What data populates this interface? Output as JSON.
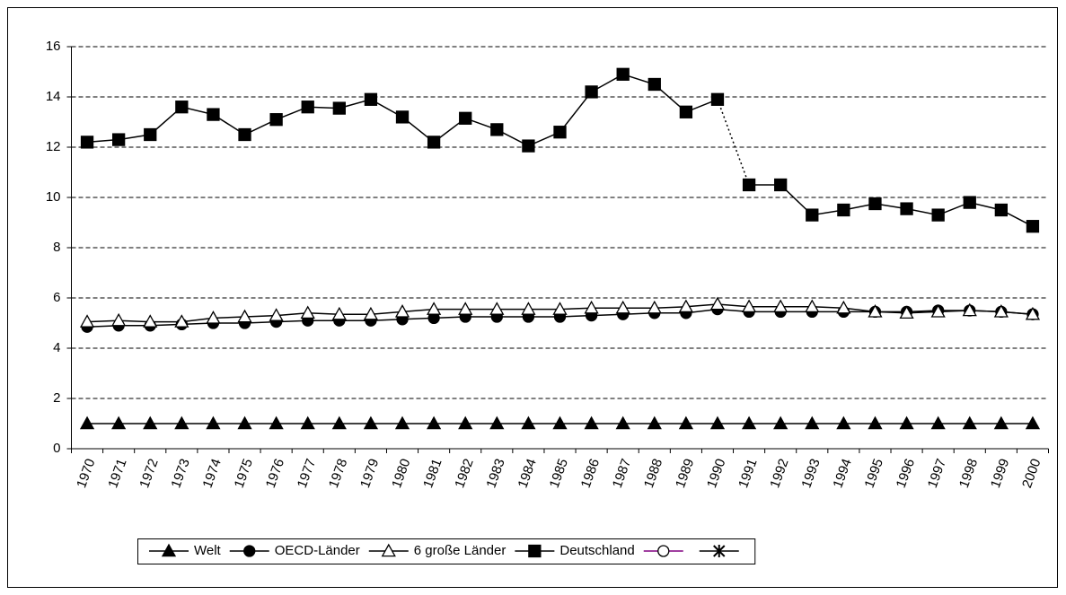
{
  "chart_data": {
    "type": "line",
    "categories": [
      "1970",
      "1971",
      "1972",
      "1973",
      "1974",
      "1975",
      "1976",
      "1977",
      "1978",
      "1979",
      "1980",
      "1981",
      "1982",
      "1983",
      "1984",
      "1985",
      "1986",
      "1987",
      "1988",
      "1989",
      "1990",
      "1991",
      "1992",
      "1993",
      "1994",
      "1995",
      "1996",
      "1997",
      "1998",
      "1999",
      "2000"
    ],
    "series": [
      {
        "name": "Welt",
        "color": "#000000",
        "marker": "triangle-filled",
        "values": [
          1,
          1,
          1,
          1,
          1,
          1,
          1,
          1,
          1,
          1,
          1,
          1,
          1,
          1,
          1,
          1,
          1,
          1,
          1,
          1,
          1,
          1,
          1,
          1,
          1,
          1,
          1,
          1,
          1,
          1,
          1
        ]
      },
      {
        "name": "OECD-Länder",
        "color": "#000000",
        "marker": "circle-filled",
        "values": [
          4.85,
          4.9,
          4.9,
          4.95,
          5.0,
          5.0,
          5.05,
          5.1,
          5.1,
          5.1,
          5.15,
          5.2,
          5.25,
          5.25,
          5.25,
          5.25,
          5.3,
          5.35,
          5.4,
          5.4,
          5.55,
          5.45,
          5.45,
          5.45,
          5.45,
          5.45,
          5.45,
          5.5,
          5.5,
          5.45,
          5.35
        ]
      },
      {
        "name": "6 große Länder",
        "color": "#000000",
        "marker": "triangle-open",
        "values": [
          5.05,
          5.1,
          5.05,
          5.05,
          5.2,
          5.25,
          5.3,
          5.4,
          5.35,
          5.35,
          5.45,
          5.55,
          5.55,
          5.55,
          5.55,
          5.55,
          5.6,
          5.6,
          5.6,
          5.65,
          5.75,
          5.65,
          5.65,
          5.65,
          5.6,
          5.45,
          5.4,
          5.45,
          5.5,
          5.45,
          5.35
        ]
      },
      {
        "name": "Deutschland",
        "color": "#000000",
        "marker": "square-filled",
        "dotted_segments": [
          [
            20,
            21
          ]
        ],
        "values": [
          12.2,
          12.3,
          12.5,
          13.6,
          13.3,
          12.5,
          13.1,
          13.6,
          13.55,
          13.9,
          13.2,
          12.2,
          13.15,
          12.7,
          12.05,
          12.6,
          14.2,
          14.9,
          14.5,
          13.4,
          13.9,
          10.5,
          10.5,
          9.3,
          9.5,
          9.75,
          9.55,
          9.3,
          9.8,
          9.5,
          8.85
        ]
      },
      {
        "name": null,
        "color": "#800080",
        "marker": "circle-open",
        "values": [
          null,
          null,
          null,
          null,
          null,
          null,
          null,
          null,
          null,
          null,
          null,
          null,
          null,
          null,
          null,
          null,
          null,
          null,
          null,
          null,
          null,
          null,
          null,
          null,
          null,
          null,
          null,
          null,
          null,
          null,
          null
        ]
      },
      {
        "name": null,
        "color": "#000000",
        "marker": "star",
        "values": [
          null,
          null,
          null,
          null,
          null,
          null,
          null,
          null,
          null,
          null,
          null,
          null,
          null,
          null,
          null,
          null,
          null,
          null,
          null,
          null,
          null,
          null,
          null,
          null,
          null,
          null,
          null,
          null,
          null,
          null,
          null
        ]
      }
    ],
    "ylim": [
      0,
      16
    ],
    "yticks": [
      0,
      2,
      4,
      6,
      8,
      10,
      12,
      14,
      16
    ],
    "grid": true,
    "legend": "bottom"
  }
}
